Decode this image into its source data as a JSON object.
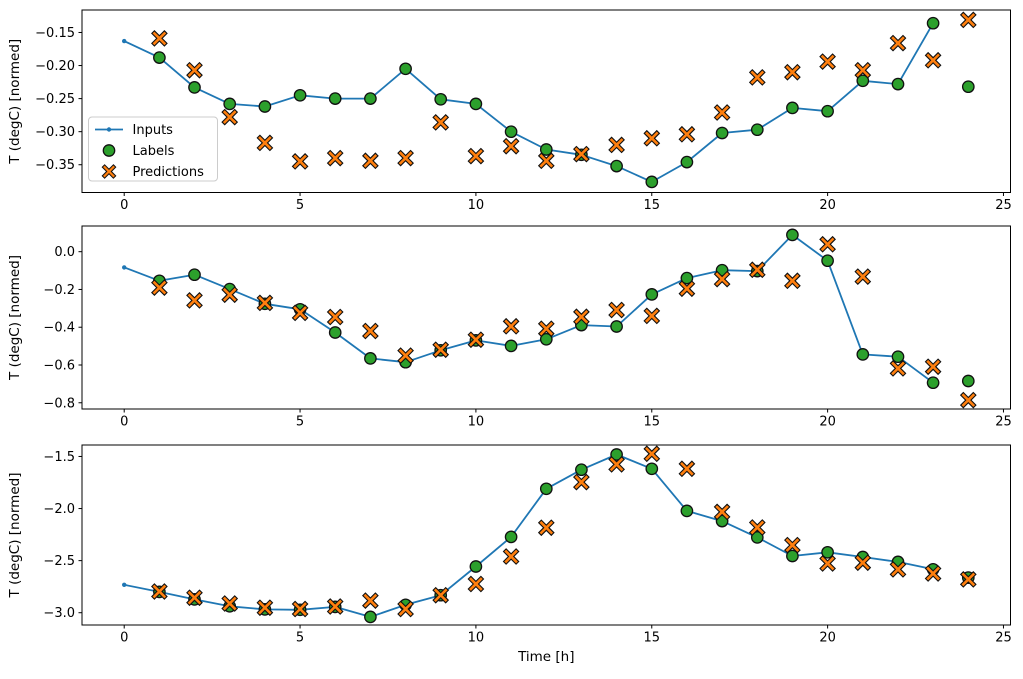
{
  "figure": {
    "background": "#ffffff",
    "xlabel": "Time [h]",
    "ylabel": "T (degC) [normed]"
  },
  "colors": {
    "inputs_line": "#1f77b4",
    "labels_fill": "#2ca02c",
    "predictions_fill": "#ff7f0e",
    "marker_edge": "#111111",
    "spine": "#000000",
    "text": "#000000",
    "legend_border": "#cccccc",
    "legend_bg": "#ffffff"
  },
  "legend": {
    "visible_on": "top-subplot",
    "entries": [
      {
        "label": "Inputs",
        "marker": "line-dot"
      },
      {
        "label": "Labels",
        "marker": "circle"
      },
      {
        "label": "Predictions",
        "marker": "X"
      }
    ]
  },
  "chart_data": [
    {
      "id": "top",
      "type": "line",
      "title": "",
      "xlabel": "",
      "ylabel": "T (degC) [normed]",
      "xlim": [
        -1.2,
        25.2
      ],
      "ylim": [
        -0.392,
        -0.116
      ],
      "grid": false,
      "xticks": {
        "values": [
          0,
          5,
          10,
          15,
          20,
          25
        ],
        "labels": [
          "0",
          "5",
          "10",
          "15",
          "20",
          "25"
        ]
      },
      "yticks": {
        "values": [
          -0.15,
          -0.2,
          -0.25,
          -0.3,
          -0.35
        ],
        "labels": [
          "−0.15",
          "−0.20",
          "−0.25",
          "−0.30",
          "−0.35"
        ]
      },
      "legend_visible": true,
      "series": [
        {
          "name": "Inputs",
          "type": "line",
          "marker": "dot",
          "x": [
            0,
            1,
            2,
            3,
            4,
            5,
            6,
            7,
            8,
            9,
            10,
            11,
            12,
            13,
            14,
            15,
            16,
            17,
            18,
            19,
            20,
            21,
            22,
            23
          ],
          "y": [
            -0.163,
            -0.188,
            -0.233,
            -0.258,
            -0.262,
            -0.245,
            -0.25,
            -0.25,
            -0.205,
            -0.251,
            -0.258,
            -0.3,
            -0.327,
            -0.335,
            -0.352,
            -0.376,
            -0.346,
            -0.302,
            -0.297,
            -0.264,
            -0.269,
            -0.223,
            -0.228,
            -0.136
          ]
        },
        {
          "name": "Labels",
          "type": "scatter",
          "marker": "circle",
          "x": [
            1,
            2,
            3,
            4,
            5,
            6,
            7,
            8,
            9,
            10,
            11,
            12,
            13,
            14,
            15,
            16,
            17,
            18,
            19,
            20,
            21,
            22,
            23,
            24
          ],
          "y": [
            -0.188,
            -0.233,
            -0.258,
            -0.262,
            -0.245,
            -0.25,
            -0.25,
            -0.205,
            -0.251,
            -0.258,
            -0.3,
            -0.327,
            -0.335,
            -0.352,
            -0.376,
            -0.346,
            -0.302,
            -0.297,
            -0.264,
            -0.269,
            -0.223,
            -0.228,
            -0.136,
            -0.232
          ]
        },
        {
          "name": "Predictions",
          "type": "scatter",
          "marker": "X",
          "x": [
            1,
            2,
            3,
            4,
            5,
            6,
            7,
            8,
            9,
            10,
            11,
            12,
            13,
            14,
            15,
            16,
            17,
            18,
            19,
            20,
            21,
            22,
            23,
            24
          ],
          "y": [
            -0.159,
            -0.207,
            -0.278,
            -0.317,
            -0.345,
            -0.34,
            -0.344,
            -0.34,
            -0.286,
            -0.337,
            -0.322,
            -0.344,
            -0.334,
            -0.32,
            -0.31,
            -0.304,
            -0.271,
            -0.218,
            -0.21,
            -0.194,
            -0.207,
            -0.166,
            -0.192,
            -0.131
          ]
        }
      ]
    },
    {
      "id": "middle",
      "type": "line",
      "title": "",
      "xlabel": "",
      "ylabel": "T (degC) [normed]",
      "xlim": [
        -1.2,
        25.2
      ],
      "ylim": [
        -0.833,
        0.136
      ],
      "grid": false,
      "xticks": {
        "values": [
          0,
          5,
          10,
          15,
          20,
          25
        ],
        "labels": [
          "0",
          "5",
          "10",
          "15",
          "20",
          "25"
        ]
      },
      "yticks": {
        "values": [
          0.0,
          -0.2,
          -0.4,
          -0.6,
          -0.8
        ],
        "labels": [
          "0.0",
          "−0.2",
          "−0.4",
          "−0.6",
          "−0.8"
        ]
      },
      "legend_visible": false,
      "series": [
        {
          "name": "Inputs",
          "type": "line",
          "marker": "dot",
          "x": [
            0,
            1,
            2,
            3,
            4,
            5,
            6,
            7,
            8,
            9,
            10,
            11,
            12,
            13,
            14,
            15,
            16,
            17,
            18,
            19,
            20,
            21,
            22,
            23
          ],
          "y": [
            -0.083,
            -0.154,
            -0.122,
            -0.198,
            -0.276,
            -0.305,
            -0.428,
            -0.565,
            -0.585,
            -0.522,
            -0.47,
            -0.499,
            -0.464,
            -0.389,
            -0.396,
            -0.226,
            -0.14,
            -0.098,
            -0.103,
            0.089,
            -0.048,
            -0.544,
            -0.556,
            -0.694
          ]
        },
        {
          "name": "Labels",
          "type": "scatter",
          "marker": "circle",
          "x": [
            1,
            2,
            3,
            4,
            5,
            6,
            7,
            8,
            9,
            10,
            11,
            12,
            13,
            14,
            15,
            16,
            17,
            18,
            19,
            20,
            21,
            22,
            23,
            24
          ],
          "y": [
            -0.154,
            -0.122,
            -0.198,
            -0.276,
            -0.305,
            -0.428,
            -0.565,
            -0.585,
            -0.522,
            -0.47,
            -0.499,
            -0.464,
            -0.389,
            -0.396,
            -0.226,
            -0.14,
            -0.098,
            -0.103,
            0.089,
            -0.048,
            -0.544,
            -0.556,
            -0.694,
            -0.685
          ]
        },
        {
          "name": "Predictions",
          "type": "scatter",
          "marker": "X",
          "x": [
            1,
            2,
            3,
            4,
            5,
            6,
            7,
            8,
            9,
            10,
            11,
            12,
            13,
            14,
            15,
            16,
            17,
            18,
            19,
            20,
            21,
            22,
            23,
            24
          ],
          "y": [
            -0.19,
            -0.258,
            -0.228,
            -0.271,
            -0.324,
            -0.346,
            -0.42,
            -0.55,
            -0.519,
            -0.466,
            -0.395,
            -0.408,
            -0.345,
            -0.309,
            -0.34,
            -0.196,
            -0.145,
            -0.096,
            -0.154,
            0.039,
            -0.132,
            -0.618,
            -0.609,
            -0.786
          ]
        }
      ]
    },
    {
      "id": "bottom",
      "type": "line",
      "title": "",
      "xlabel": "Time [h]",
      "ylabel": "T (degC) [normed]",
      "xlim": [
        -1.2,
        25.2
      ],
      "ylim": [
        -3.118,
        -1.39
      ],
      "grid": false,
      "xticks": {
        "values": [
          0,
          5,
          10,
          15,
          20,
          25
        ],
        "labels": [
          "0",
          "5",
          "10",
          "15",
          "20",
          "25"
        ]
      },
      "yticks": {
        "values": [
          -1.5,
          -2.0,
          -2.5,
          -3.0
        ],
        "labels": [
          "−1.5",
          "−2.0",
          "−2.5",
          "−3.0"
        ]
      },
      "legend_visible": false,
      "series": [
        {
          "name": "Inputs",
          "type": "line",
          "marker": "dot",
          "x": [
            0,
            1,
            2,
            3,
            4,
            5,
            6,
            7,
            8,
            9,
            10,
            11,
            12,
            13,
            14,
            15,
            16,
            17,
            18,
            19,
            20,
            21,
            22,
            23
          ],
          "y": [
            -2.732,
            -2.8,
            -2.872,
            -2.938,
            -2.968,
            -2.972,
            -2.944,
            -3.04,
            -2.924,
            -2.832,
            -2.556,
            -2.272,
            -1.81,
            -1.627,
            -1.481,
            -1.618,
            -2.023,
            -2.121,
            -2.277,
            -2.456,
            -2.42,
            -2.465,
            -2.512,
            -2.583
          ]
        },
        {
          "name": "Labels",
          "type": "scatter",
          "marker": "circle",
          "x": [
            1,
            2,
            3,
            4,
            5,
            6,
            7,
            8,
            9,
            10,
            11,
            12,
            13,
            14,
            15,
            16,
            17,
            18,
            19,
            20,
            21,
            22,
            23,
            24
          ],
          "y": [
            -2.8,
            -2.872,
            -2.938,
            -2.968,
            -2.972,
            -2.944,
            -3.04,
            -2.924,
            -2.832,
            -2.556,
            -2.272,
            -1.81,
            -1.627,
            -1.481,
            -1.618,
            -2.023,
            -2.121,
            -2.277,
            -2.456,
            -2.42,
            -2.465,
            -2.512,
            -2.583,
            -2.663
          ]
        },
        {
          "name": "Predictions",
          "type": "scatter",
          "marker": "X",
          "x": [
            1,
            2,
            3,
            4,
            5,
            6,
            7,
            8,
            9,
            10,
            11,
            12,
            13,
            14,
            15,
            16,
            17,
            18,
            19,
            20,
            21,
            22,
            23,
            24
          ],
          "y": [
            -2.796,
            -2.856,
            -2.912,
            -2.952,
            -2.964,
            -2.94,
            -2.884,
            -2.964,
            -2.832,
            -2.724,
            -2.46,
            -2.184,
            -1.746,
            -1.576,
            -1.474,
            -1.618,
            -2.032,
            -2.182,
            -2.351,
            -2.528,
            -2.52,
            -2.584,
            -2.624,
            -2.68
          ]
        }
      ]
    }
  ]
}
